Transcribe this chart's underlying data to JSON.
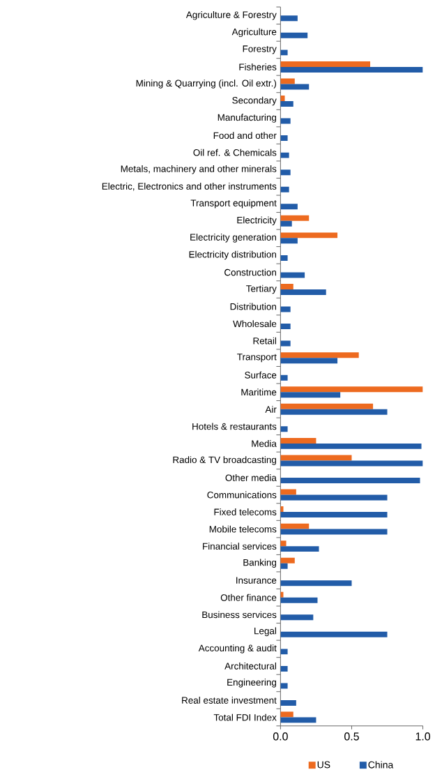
{
  "chart_data": {
    "type": "bar",
    "orientation": "horizontal",
    "categories": [
      "Agriculture & Forestry",
      "Agriculture",
      "Forestry",
      "Fisheries",
      "Mining & Quarrying (incl. Oil extr.)",
      "Secondary",
      "Manufacturing",
      "Food and other",
      "Oil ref. & Chemicals",
      "Metals, machinery and other minerals",
      "Electric, Electronics and other instruments",
      "Transport equipment",
      "Electricity",
      "Electricity generation",
      "Electricity distribution",
      "Construction",
      "Tertiary",
      "Distribution",
      "Wholesale",
      "Retail",
      "Transport",
      "Surface",
      "Maritime",
      "Air",
      "Hotels & restaurants",
      "Media",
      "Radio & TV broadcasting",
      "Other media",
      "Communications",
      "Fixed telecoms",
      "Mobile telecoms",
      "Financial services",
      "Banking",
      "Insurance",
      "Other finance",
      "Business services",
      "Legal",
      "Accounting & audit",
      "Architectural",
      "Engineering",
      "Real estate investment",
      "Total FDI Index"
    ],
    "series": [
      {
        "name": "US",
        "color": "#ed6a1f",
        "values": [
          null,
          null,
          null,
          0.63,
          0.1,
          0.03,
          null,
          null,
          null,
          null,
          null,
          null,
          0.2,
          0.4,
          null,
          null,
          0.09,
          null,
          null,
          null,
          0.55,
          null,
          1.0,
          0.65,
          null,
          0.25,
          0.5,
          null,
          0.11,
          0.02,
          0.2,
          0.04,
          0.1,
          null,
          0.02,
          null,
          null,
          null,
          null,
          null,
          null,
          0.09
        ]
      },
      {
        "name": "China",
        "color": "#225ca8",
        "values": [
          0.12,
          0.19,
          0.05,
          1.0,
          0.2,
          0.09,
          0.07,
          0.05,
          0.06,
          0.07,
          0.06,
          0.12,
          0.08,
          0.12,
          0.05,
          0.17,
          0.32,
          0.07,
          0.07,
          0.07,
          0.4,
          0.05,
          0.42,
          0.75,
          0.05,
          0.99,
          1.0,
          0.98,
          0.75,
          0.75,
          0.75,
          0.27,
          0.05,
          0.5,
          0.26,
          0.23,
          0.75,
          0.05,
          0.05,
          0.05,
          0.11,
          0.25
        ]
      }
    ],
    "xlim": [
      0,
      1.0
    ],
    "xticks": [
      {
        "value": 0,
        "label": "0.0"
      },
      {
        "value": 0.5,
        "label": "0.5"
      },
      {
        "value": 1.0,
        "label": "1.0"
      }
    ],
    "legend": "bottom"
  }
}
